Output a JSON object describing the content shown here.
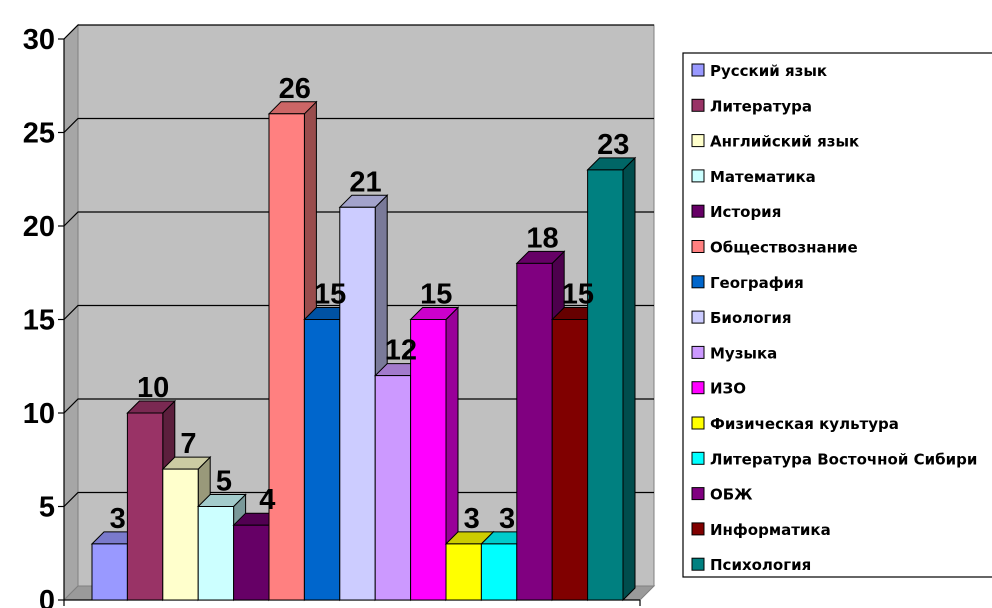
{
  "chart_data": {
    "type": "bar",
    "title": "",
    "xlabel": "",
    "ylabel": "",
    "ylim": [
      0,
      30
    ],
    "yticks": [
      "0",
      "5",
      "10",
      "15",
      "20",
      "25",
      "30"
    ],
    "grid": true,
    "legend_position": "right",
    "series": [
      {
        "name": "Русский язык",
        "value": 3,
        "color": "#9999ff"
      },
      {
        "name": "Литература",
        "value": 10,
        "color": "#993366"
      },
      {
        "name": "Английский язык",
        "value": 7,
        "color": "#ffffcc"
      },
      {
        "name": "Математика",
        "value": 5,
        "color": "#ccffff"
      },
      {
        "name": "История",
        "value": 4,
        "color": "#660066"
      },
      {
        "name": "Обществознание",
        "value": 26,
        "color": "#ff8080"
      },
      {
        "name": "География",
        "value": 15,
        "color": "#0066cc"
      },
      {
        "name": "Биология",
        "value": 21,
        "color": "#ccccff"
      },
      {
        "name": "Музыка",
        "value": 12,
        "color": "#cc99ff"
      },
      {
        "name": "ИЗО",
        "value": 15,
        "color": "#ff00ff"
      },
      {
        "name": "Физическая культура",
        "value": 3,
        "color": "#ffff00"
      },
      {
        "name": "Литература Восточной Сибири",
        "value": 3,
        "color": "#00ffff"
      },
      {
        "name": "ОБЖ",
        "value": 18,
        "color": "#800080"
      },
      {
        "name": "Информатика",
        "value": 15,
        "color": "#800000"
      },
      {
        "name": "Психология",
        "value": 23,
        "color": "#008080"
      }
    ]
  }
}
